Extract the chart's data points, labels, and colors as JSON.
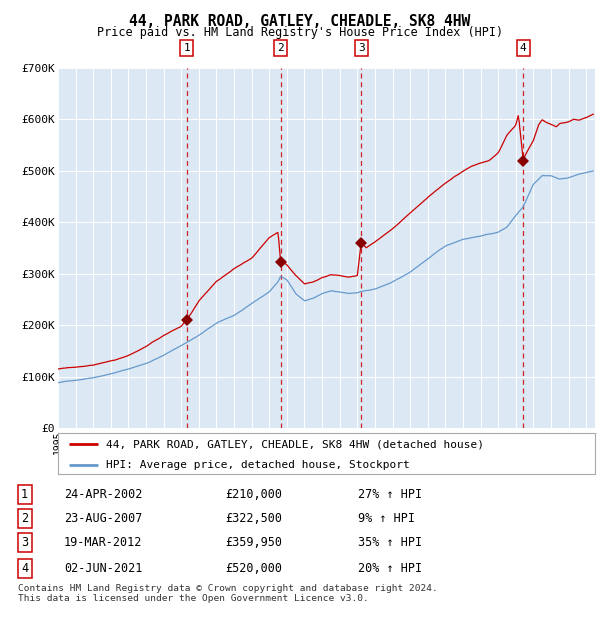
{
  "title": "44, PARK ROAD, GATLEY, CHEADLE, SK8 4HW",
  "subtitle": "Price paid vs. HM Land Registry's House Price Index (HPI)",
  "background_color": "#dce9f5",
  "plot_bg_color": "#dce9f5",
  "red_line_label": "44, PARK ROAD, GATLEY, CHEADLE, SK8 4HW (detached house)",
  "blue_line_label": "HPI: Average price, detached house, Stockport",
  "footer": "Contains HM Land Registry data © Crown copyright and database right 2024.\nThis data is licensed under the Open Government Licence v3.0.",
  "transactions": [
    {
      "num": 1,
      "date": "24-APR-2002",
      "price": "210,000",
      "pct": "27%",
      "dir": "↑",
      "label": "HPI"
    },
    {
      "num": 2,
      "date": "23-AUG-2007",
      "price": "322,500",
      "pct": "9%",
      "dir": "↑",
      "label": "HPI"
    },
    {
      "num": 3,
      "date": "19-MAR-2012",
      "price": "359,950",
      "pct": "35%",
      "dir": "↑",
      "label": "HPI"
    },
    {
      "num": 4,
      "date": "02-JUN-2021",
      "price": "520,000",
      "pct": "20%",
      "dir": "↑",
      "label": "HPI"
    }
  ],
  "transaction_dates_decimal": [
    2002.31,
    2007.64,
    2012.22,
    2021.42
  ],
  "transaction_prices": [
    210000,
    322500,
    359950,
    520000
  ],
  "ylim": [
    0,
    700000
  ],
  "xlim_start": 1995.0,
  "xlim_end": 2025.5,
  "yticks": [
    0,
    100000,
    200000,
    300000,
    400000,
    500000,
    600000,
    700000
  ],
  "ytick_labels": [
    "£0",
    "£100K",
    "£200K",
    "£300K",
    "£400K",
    "£500K",
    "£600K",
    "£700K"
  ],
  "red_color": "#cc0000",
  "blue_color": "#6699cc",
  "marker_color": "#880000",
  "blue_anchors": [
    [
      1995.0,
      88000
    ],
    [
      1996.0,
      93000
    ],
    [
      1997.0,
      99000
    ],
    [
      1998.0,
      107000
    ],
    [
      1999.0,
      116000
    ],
    [
      2000.0,
      127000
    ],
    [
      2001.0,
      143000
    ],
    [
      2002.0,
      162000
    ],
    [
      2003.0,
      182000
    ],
    [
      2004.0,
      205000
    ],
    [
      2005.0,
      220000
    ],
    [
      2006.0,
      242000
    ],
    [
      2007.0,
      265000
    ],
    [
      2007.5,
      285000
    ],
    [
      2007.64,
      295000
    ],
    [
      2008.0,
      288000
    ],
    [
      2008.5,
      262000
    ],
    [
      2009.0,
      248000
    ],
    [
      2009.5,
      253000
    ],
    [
      2010.0,
      262000
    ],
    [
      2010.5,
      267000
    ],
    [
      2011.0,
      264000
    ],
    [
      2011.5,
      261000
    ],
    [
      2012.0,
      262000
    ],
    [
      2012.22,
      265000
    ],
    [
      2013.0,
      270000
    ],
    [
      2014.0,
      283000
    ],
    [
      2015.0,
      302000
    ],
    [
      2016.0,
      328000
    ],
    [
      2017.0,
      352000
    ],
    [
      2018.0,
      366000
    ],
    [
      2019.0,
      373000
    ],
    [
      2020.0,
      380000
    ],
    [
      2020.5,
      390000
    ],
    [
      2021.0,
      413000
    ],
    [
      2021.42,
      430000
    ],
    [
      2022.0,
      475000
    ],
    [
      2022.5,
      492000
    ],
    [
      2023.0,
      492000
    ],
    [
      2023.5,
      485000
    ],
    [
      2024.0,
      488000
    ],
    [
      2024.5,
      494000
    ],
    [
      2025.0,
      498000
    ],
    [
      2025.4,
      501000
    ]
  ],
  "red_anchors": [
    [
      1995.0,
      115000
    ],
    [
      1996.0,
      118000
    ],
    [
      1997.0,
      122000
    ],
    [
      1998.0,
      130000
    ],
    [
      1999.0,
      140000
    ],
    [
      2000.0,
      157000
    ],
    [
      2001.0,
      178000
    ],
    [
      2002.0,
      196000
    ],
    [
      2002.31,
      210000
    ],
    [
      2002.5,
      218000
    ],
    [
      2003.0,
      245000
    ],
    [
      2004.0,
      283000
    ],
    [
      2005.0,
      308000
    ],
    [
      2006.0,
      328000
    ],
    [
      2007.0,
      368000
    ],
    [
      2007.5,
      378000
    ],
    [
      2007.64,
      322500
    ],
    [
      2008.0,
      315000
    ],
    [
      2008.5,
      295000
    ],
    [
      2009.0,
      278000
    ],
    [
      2009.5,
      283000
    ],
    [
      2010.0,
      292000
    ],
    [
      2010.5,
      298000
    ],
    [
      2011.0,
      296000
    ],
    [
      2011.5,
      293000
    ],
    [
      2012.0,
      296000
    ],
    [
      2012.22,
      359950
    ],
    [
      2012.5,
      350000
    ],
    [
      2013.0,
      362000
    ],
    [
      2014.0,
      388000
    ],
    [
      2015.0,
      418000
    ],
    [
      2016.0,
      448000
    ],
    [
      2017.0,
      476000
    ],
    [
      2017.5,
      488000
    ],
    [
      2018.0,
      498000
    ],
    [
      2018.5,
      508000
    ],
    [
      2019.0,
      514000
    ],
    [
      2019.5,
      519000
    ],
    [
      2020.0,
      533000
    ],
    [
      2020.5,
      568000
    ],
    [
      2021.0,
      588000
    ],
    [
      2021.15,
      608000
    ],
    [
      2021.42,
      520000
    ],
    [
      2021.6,
      533000
    ],
    [
      2022.0,
      558000
    ],
    [
      2022.3,
      588000
    ],
    [
      2022.5,
      598000
    ],
    [
      2022.7,
      593000
    ],
    [
      2023.0,
      588000
    ],
    [
      2023.3,
      583000
    ],
    [
      2023.5,
      590000
    ],
    [
      2024.0,
      593000
    ],
    [
      2024.3,
      598000
    ],
    [
      2024.6,
      596000
    ],
    [
      2025.0,
      601000
    ],
    [
      2025.4,
      608000
    ]
  ]
}
